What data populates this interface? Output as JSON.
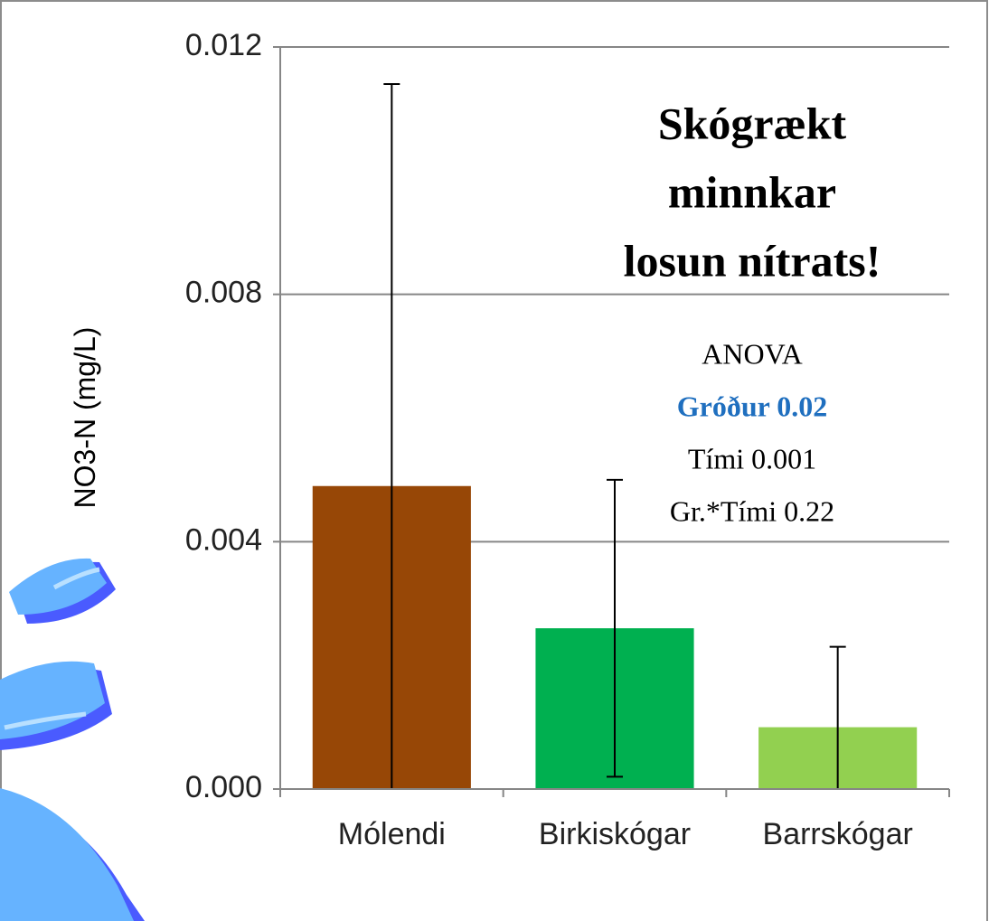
{
  "chart_data": {
    "type": "bar",
    "y_label": "NO3-N (mg/L)",
    "categories": [
      "Mólendi",
      "Birkiskógar",
      "Barrskógar"
    ],
    "values": [
      0.0049,
      0.0026,
      0.001
    ],
    "errors": [
      0.0065,
      0.0024,
      0.0013
    ],
    "colors": [
      "#974706",
      "#00b050",
      "#92d050"
    ],
    "ylim": [
      0,
      0.012
    ],
    "yticks": [
      {
        "value": 0,
        "label": "0.000"
      },
      0.004,
      0.008,
      0.012
    ],
    "grid": true,
    "headline": [
      "Skógrækt",
      "minnkar",
      "losun nítrats!"
    ],
    "stats": [
      {
        "text": "ANOVA",
        "color": "#000000",
        "bold": false
      },
      {
        "text": "Gróður 0.02",
        "color": "#1f6fbf",
        "bold": true
      },
      {
        "text": "Tími 0.001",
        "color": "#000000",
        "bold": false
      },
      {
        "text": "Gr.*Tími 0.22",
        "color": "#000000",
        "bold": false
      }
    ]
  }
}
